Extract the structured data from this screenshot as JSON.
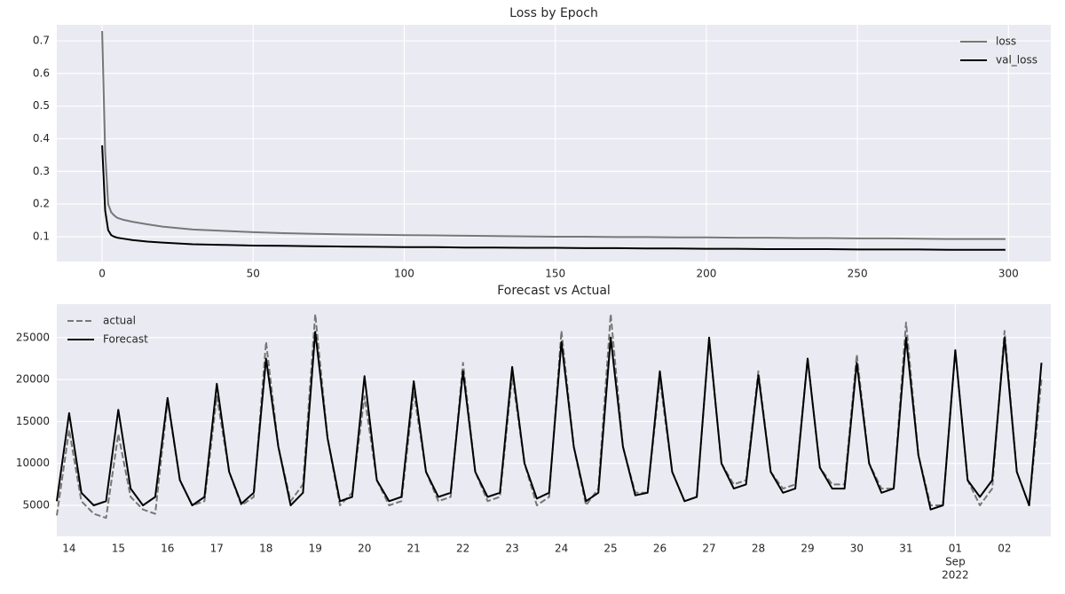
{
  "chart_data": [
    {
      "type": "line",
      "title": "Loss by Epoch",
      "x": [
        0,
        1,
        2,
        3,
        4,
        5,
        7,
        10,
        15,
        20,
        30,
        40,
        50,
        60,
        70,
        80,
        90,
        100,
        110,
        120,
        130,
        140,
        150,
        160,
        170,
        180,
        190,
        200,
        210,
        220,
        230,
        240,
        250,
        260,
        270,
        280,
        290,
        299
      ],
      "series": [
        {
          "name": "loss",
          "color": "#777777",
          "values": [
            0.73,
            0.36,
            0.2,
            0.175,
            0.165,
            0.158,
            0.152,
            0.146,
            0.138,
            0.131,
            0.122,
            0.118,
            0.114,
            0.111,
            0.109,
            0.107,
            0.106,
            0.105,
            0.104,
            0.103,
            0.102,
            0.101,
            0.1,
            0.1,
            0.099,
            0.099,
            0.098,
            0.098,
            0.097,
            0.097,
            0.096,
            0.096,
            0.095,
            0.095,
            0.094,
            0.093,
            0.093,
            0.093
          ]
        },
        {
          "name": "val_loss",
          "color": "#000000",
          "values": [
            0.38,
            0.18,
            0.12,
            0.105,
            0.1,
            0.097,
            0.094,
            0.09,
            0.085,
            0.082,
            0.077,
            0.075,
            0.073,
            0.072,
            0.071,
            0.07,
            0.069,
            0.068,
            0.068,
            0.067,
            0.067,
            0.066,
            0.066,
            0.065,
            0.065,
            0.064,
            0.064,
            0.063,
            0.063,
            0.062,
            0.062,
            0.062,
            0.061,
            0.061,
            0.061,
            0.06,
            0.06,
            0.06
          ]
        }
      ],
      "xlim": [
        -15,
        314
      ],
      "xticks": [
        0,
        50,
        100,
        150,
        200,
        250,
        300
      ],
      "ylim": [
        0.024,
        0.749
      ],
      "yticks": [
        0.1,
        0.2,
        0.3,
        0.4,
        0.5,
        0.6,
        0.7
      ],
      "grid": true,
      "xgrid": "all",
      "legend": "upper right"
    },
    {
      "type": "line",
      "title": "Forecast vs Actual",
      "x": [
        13.75,
        14,
        14.25,
        14.5,
        14.75,
        15,
        15.25,
        15.5,
        15.75,
        16,
        16.25,
        16.5,
        16.75,
        17,
        17.25,
        17.5,
        17.75,
        18,
        18.25,
        18.5,
        18.75,
        19,
        19.25,
        19.5,
        19.75,
        20,
        20.25,
        20.5,
        20.75,
        21,
        21.25,
        21.5,
        21.75,
        22,
        22.25,
        22.5,
        22.75,
        23,
        23.25,
        23.5,
        23.75,
        24,
        24.25,
        24.5,
        24.75,
        25,
        25.25,
        25.5,
        25.75,
        26,
        26.25,
        26.5,
        26.75,
        27,
        27.25,
        27.5,
        27.75,
        28,
        28.25,
        28.5,
        28.75,
        29,
        29.25,
        29.5,
        29.75,
        30,
        30.25,
        30.5,
        30.75,
        31,
        31.25,
        31.5,
        31.75,
        32,
        32.25,
        32.5,
        32.75,
        33,
        33.25,
        33.5,
        33.75
      ],
      "series": [
        {
          "name": "actual",
          "color": "#777777",
          "dashed": true,
          "values": [
            3800,
            14000,
            5500,
            4000,
            3500,
            13500,
            6000,
            4500,
            4000,
            17500,
            8000,
            5000,
            5500,
            18000,
            9000,
            5000,
            6000,
            24500,
            12000,
            5500,
            7500,
            27800,
            13000,
            5000,
            6500,
            18000,
            8000,
            5000,
            5500,
            18500,
            9000,
            5500,
            6000,
            22000,
            9000,
            5500,
            6000,
            20500,
            10000,
            5000,
            6000,
            25800,
            12000,
            5000,
            7000,
            27800,
            12000,
            6500,
            6500,
            20000,
            9000,
            5500,
            6000,
            24800,
            10000,
            7500,
            8000,
            21000,
            9000,
            7000,
            7500,
            22500,
            9500,
            7500,
            7500,
            23000,
            10000,
            7000,
            7000,
            26800,
            11000,
            5000,
            5000,
            23500,
            8000,
            5000,
            7000,
            25800,
            9000,
            5000,
            20000
          ]
        },
        {
          "name": "Forecast",
          "color": "#000000",
          "values": [
            5500,
            16000,
            6500,
            5000,
            5500,
            16400,
            7000,
            5000,
            6000,
            17800,
            8000,
            5000,
            6000,
            19500,
            9000,
            5200,
            6500,
            22500,
            12000,
            5000,
            6500,
            25700,
            13000,
            5500,
            6000,
            20400,
            8000,
            5500,
            6000,
            19800,
            9000,
            6000,
            6500,
            21000,
            9000,
            6000,
            6500,
            21500,
            10000,
            5800,
            6500,
            24500,
            12000,
            5500,
            6500,
            25000,
            12000,
            6200,
            6500,
            21000,
            9000,
            5500,
            6000,
            25000,
            10000,
            7000,
            7500,
            20500,
            9000,
            6500,
            7000,
            22500,
            9500,
            7000,
            7000,
            22000,
            10000,
            6500,
            7000,
            25000,
            11000,
            4500,
            5000,
            23500,
            8000,
            6000,
            8000,
            25000,
            9000,
            5000,
            22000
          ]
        }
      ],
      "xlim": [
        13.75,
        33.94
      ],
      "xticks": [
        14,
        15,
        16,
        17,
        18,
        19,
        20,
        21,
        22,
        23,
        24,
        25,
        26,
        27,
        28,
        29,
        30,
        31,
        {
          "value": 32,
          "label": [
            "01",
            "Sep",
            "2022"
          ],
          "major": true
        },
        {
          "value": 33,
          "label": "02"
        }
      ],
      "ylim": [
        1300,
        29000
      ],
      "yticks": [
        5000,
        10000,
        15000,
        20000,
        25000
      ],
      "grid": true,
      "xgrid": "major",
      "legend": "upper left"
    }
  ]
}
